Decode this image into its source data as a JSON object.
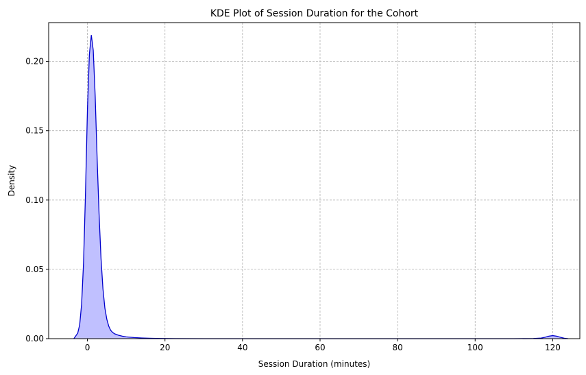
{
  "chart_data": {
    "type": "area",
    "title": "KDE Plot of Session Duration for the Cohort",
    "xlabel": "Session Duration (minutes)",
    "ylabel": "Density",
    "xlim": [
      -10,
      127
    ],
    "ylim": [
      0,
      0.228
    ],
    "x_ticks": [
      0,
      20,
      40,
      60,
      80,
      100,
      120
    ],
    "y_ticks": [
      0.0,
      0.05,
      0.1,
      0.15,
      0.2
    ],
    "y_tick_labels": [
      "0.00",
      "0.05",
      "0.10",
      "0.15",
      "0.20"
    ],
    "grid": true,
    "line_color": "#0000cc",
    "fill_color": "#c0c0ff",
    "series": [
      {
        "x": [
          -3.5,
          -2.5,
          -2,
          -1.5,
          -1,
          -0.5,
          0,
          0.5,
          1,
          1.5,
          2,
          2.5,
          3,
          3.5,
          4,
          4.5,
          5,
          5.5,
          6,
          6.5,
          7,
          8,
          9,
          10,
          12,
          14,
          16,
          18,
          20,
          30,
          40,
          60,
          80,
          100,
          110,
          115,
          117,
          118,
          119,
          120,
          121,
          122,
          123,
          124
        ],
        "y": [
          0,
          0.004,
          0.01,
          0.025,
          0.055,
          0.105,
          0.165,
          0.205,
          0.219,
          0.208,
          0.175,
          0.13,
          0.09,
          0.058,
          0.036,
          0.022,
          0.014,
          0.009,
          0.006,
          0.0045,
          0.0035,
          0.0025,
          0.0018,
          0.0013,
          0.0008,
          0.0005,
          0.0003,
          0.0002,
          0.0001,
          0,
          0,
          0,
          0,
          0,
          0,
          0.0001,
          0.0004,
          0.001,
          0.0018,
          0.0022,
          0.0018,
          0.001,
          0.0003,
          0
        ]
      }
    ]
  }
}
